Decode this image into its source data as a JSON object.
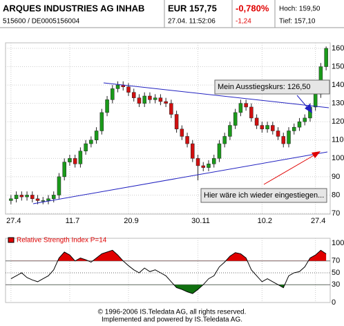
{
  "header": {
    "name": "ARQUES INDUSTRIES AG INHAB",
    "ids": "515600 / DE0005156004",
    "price": "EUR 157,75",
    "time": "27.04. 11:52:06",
    "change_pct": "-0,780%",
    "change": "-1,24",
    "high": "Hoch: 159,50",
    "low": "Tief: 157,10"
  },
  "chart_data": [
    {
      "type": "candlestick",
      "categories": [
        "27.4",
        null,
        null,
        null,
        null,
        null,
        null,
        null,
        null,
        null,
        null,
        "11.7",
        null,
        null,
        null,
        null,
        null,
        null,
        null,
        null,
        null,
        null,
        "20.9",
        null,
        null,
        null,
        null,
        null,
        null,
        null,
        null,
        null,
        null,
        null,
        null,
        "30.11",
        null,
        null,
        null,
        null,
        null,
        null,
        null,
        null,
        null,
        null,
        null,
        "10.2",
        null,
        null,
        null,
        null,
        null,
        null,
        null,
        null,
        null,
        "27.4",
        null,
        null
      ],
      "open": [
        77,
        78,
        80,
        79,
        80,
        78,
        77,
        77,
        78,
        80,
        90,
        98,
        100,
        97,
        104,
        108,
        110,
        115,
        125,
        132,
        138,
        140,
        139,
        136,
        133,
        130,
        134,
        132,
        133,
        131,
        130,
        124,
        116,
        112,
        108,
        100,
        96,
        95,
        97,
        100,
        108,
        112,
        118,
        125,
        130,
        128,
        122,
        118,
        116,
        118,
        115,
        112,
        108,
        115,
        117,
        120,
        122,
        128,
        135,
        150
      ],
      "high": [
        80,
        82,
        82,
        82,
        82,
        80,
        79,
        80,
        82,
        92,
        100,
        102,
        102,
        106,
        110,
        112,
        117,
        127,
        134,
        140,
        142,
        142,
        141,
        138,
        135,
        136,
        136,
        135,
        135,
        133,
        132,
        126,
        118,
        114,
        110,
        102,
        98,
        99,
        102,
        110,
        114,
        120,
        127,
        132,
        132,
        130,
        124,
        120,
        120,
        120,
        117,
        114,
        117,
        119,
        122,
        124,
        130,
        137,
        152,
        161
      ],
      "low": [
        75,
        76,
        77,
        77,
        76,
        75,
        75,
        75,
        76,
        78,
        88,
        96,
        95,
        95,
        102,
        106,
        108,
        113,
        123,
        130,
        136,
        137,
        134,
        131,
        128,
        128,
        130,
        130,
        129,
        128,
        122,
        114,
        110,
        106,
        98,
        88,
        93,
        93,
        95,
        98,
        106,
        110,
        116,
        123,
        126,
        120,
        116,
        114,
        114,
        113,
        110,
        106,
        106,
        113,
        115,
        118,
        120,
        126,
        133,
        148
      ],
      "close": [
        78,
        80,
        79,
        80,
        78,
        77,
        77,
        78,
        80,
        90,
        98,
        100,
        97,
        104,
        108,
        110,
        115,
        125,
        132,
        138,
        140,
        139,
        136,
        133,
        130,
        134,
        132,
        133,
        131,
        130,
        124,
        116,
        112,
        108,
        100,
        96,
        95,
        97,
        100,
        108,
        112,
        118,
        125,
        130,
        128,
        122,
        118,
        116,
        118,
        115,
        112,
        108,
        115,
        117,
        120,
        122,
        128,
        135,
        150,
        160
      ],
      "up_color": "#1a9a1a",
      "down_color": "#d01010",
      "ylim": [
        70,
        163
      ],
      "yticks": [
        70,
        80,
        90,
        100,
        110,
        120,
        130,
        140,
        150,
        160
      ],
      "grid": true,
      "annotations": [
        "Mein Ausstiegskurs: 126,50",
        "Hier wäre ich wieder eingestiegen..."
      ]
    },
    {
      "type": "line",
      "title": "Relative Strength Index P=14",
      "color": "#000000",
      "over_color": "#e00000",
      "under_color": "#107010",
      "values": [
        40,
        45,
        50,
        42,
        38,
        35,
        40,
        45,
        55,
        75,
        85,
        80,
        70,
        75,
        72,
        68,
        75,
        82,
        85,
        88,
        80,
        70,
        62,
        55,
        50,
        58,
        52,
        55,
        50,
        45,
        35,
        25,
        22,
        18,
        15,
        22,
        30,
        40,
        45,
        60,
        68,
        78,
        84,
        82,
        75,
        55,
        45,
        35,
        40,
        35,
        30,
        25,
        45,
        50,
        52,
        60,
        75,
        80,
        88,
        82
      ],
      "ylim": [
        0,
        100
      ],
      "yticks": [
        0,
        30,
        50,
        70,
        100
      ],
      "overbought": 70,
      "oversold": 30
    }
  ],
  "footer": [
    "© 1996-2006 IS.Teledata AG, all rights reserved.",
    "Implemented and powered by IS.Teledata AG."
  ]
}
